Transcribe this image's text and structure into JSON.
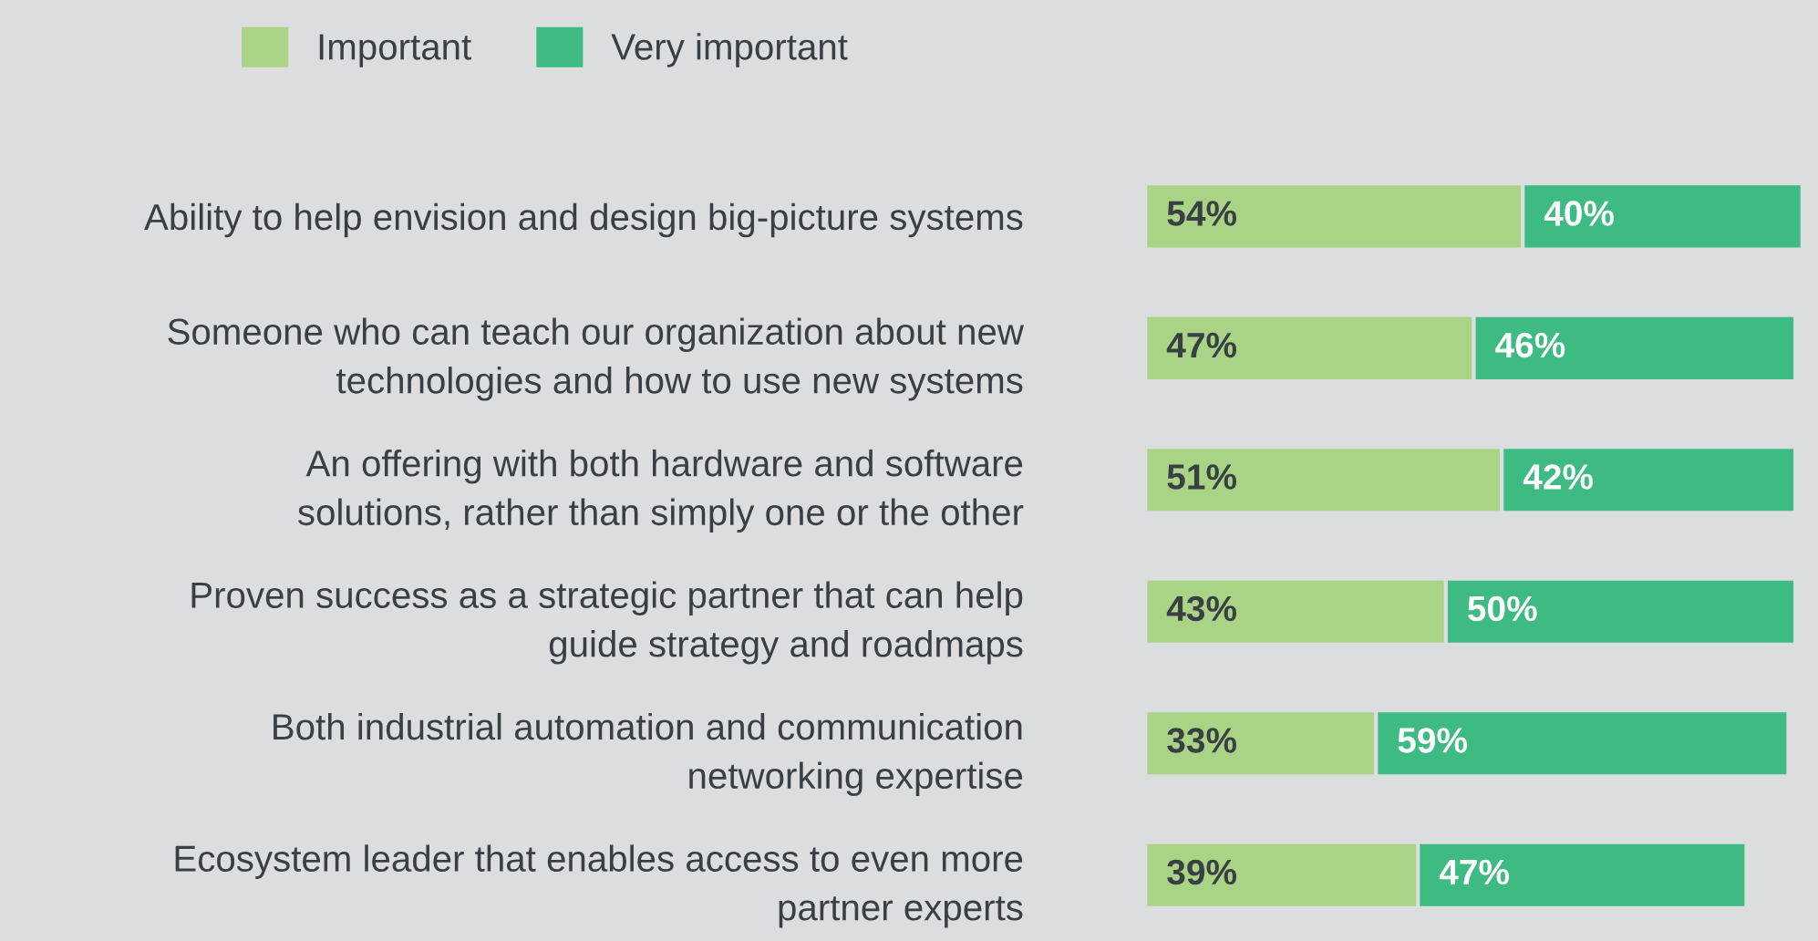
{
  "chart_data": {
    "type": "bar",
    "orientation": "horizontal",
    "stacked": true,
    "legend": "top",
    "tick_labels": "y",
    "grid": false,
    "categories": [
      "Ability to help envision and design big-picture systems",
      "Someone who can teach our organization about new\ntechnologies and how to use new systems",
      "An offering with both hardware and software\nsolutions, rather than simply one or the other",
      "Proven success as a strategic partner that can help\nguide strategy and roadmaps",
      "Both industrial automation and communication\nnetworking expertise",
      "Ecosystem leader that enables access to even more\npartner experts"
    ],
    "series": [
      {
        "name": "Important",
        "color": "#a9d486",
        "values": [
          54,
          47,
          51,
          43,
          33,
          39
        ],
        "value_labels": [
          "54%",
          "47%",
          "51%",
          "43%",
          "33%",
          "39%"
        ]
      },
      {
        "name": "Very important",
        "color": "#3dbb83",
        "values": [
          40,
          46,
          42,
          50,
          59,
          47
        ],
        "value_labels": [
          "40%",
          "46%",
          "42%",
          "50%",
          "59%",
          "47%"
        ]
      }
    ]
  }
}
